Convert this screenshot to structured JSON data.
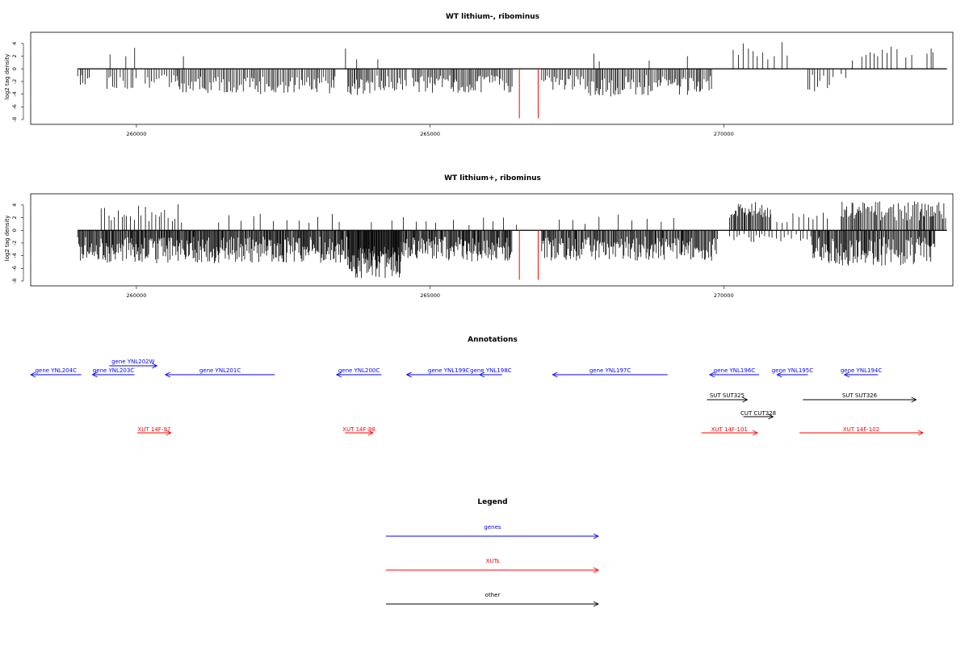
{
  "chart_data": [
    {
      "type": "bar",
      "title": "WT lithium-, ribominus",
      "ylabel": "log2 tag density",
      "xlim": [
        258200,
        273900
      ],
      "ylim": [
        -8,
        5
      ],
      "y_ticks": [
        4,
        2,
        0,
        -2,
        -4,
        -6,
        -8
      ],
      "x_ticks": [
        {
          "value": 260000,
          "label": "260000"
        },
        {
          "value": 265000,
          "label": "265000"
        },
        {
          "value": 270000,
          "label": "270000"
        }
      ],
      "highlight_color": "#ff0000",
      "bar_color": "#000000",
      "highlights": [
        {
          "x": 266520,
          "y": -7.8
        },
        {
          "x": 266840,
          "y": -7.8
        }
      ],
      "up_bars": [
        [
          259550,
          2.3
        ],
        [
          259820,
          2.0
        ],
        [
          259970,
          3.3
        ],
        [
          260800,
          2.0
        ],
        [
          263560,
          3.2
        ],
        [
          263750,
          1.5
        ],
        [
          264110,
          1.5
        ],
        [
          267790,
          2.4
        ],
        [
          267880,
          1.2
        ],
        [
          268730,
          1.3
        ],
        [
          269380,
          2.0
        ],
        [
          270160,
          3.0
        ],
        [
          270250,
          2.2
        ],
        [
          270330,
          4.0
        ],
        [
          270420,
          3.2
        ],
        [
          270500,
          2.8
        ],
        [
          270570,
          2.0
        ],
        [
          270660,
          2.6
        ],
        [
          270750,
          1.5
        ],
        [
          270860,
          2.0
        ],
        [
          270990,
          4.2
        ],
        [
          271080,
          2.1
        ],
        [
          272190,
          1.3
        ],
        [
          272350,
          1.9
        ],
        [
          272420,
          2.2
        ],
        [
          272490,
          2.6
        ],
        [
          272560,
          2.4
        ],
        [
          272620,
          2.0
        ],
        [
          272700,
          3.0
        ],
        [
          272780,
          2.5
        ],
        [
          272850,
          3.5
        ],
        [
          272950,
          3.1
        ],
        [
          273100,
          1.8
        ],
        [
          273200,
          2.2
        ],
        [
          273460,
          2.4
        ],
        [
          273530,
          3.2
        ],
        [
          273560,
          2.6
        ]
      ],
      "down_segments": [
        {
          "from": 259000,
          "to": 259200,
          "min": 1.0,
          "max": 2.6,
          "step": 35
        },
        {
          "from": 259500,
          "to": 260000,
          "min": 0.5,
          "max": 3.2,
          "step": 45
        },
        {
          "from": 260150,
          "to": 260700,
          "min": 0.8,
          "max": 3.0,
          "step": 40
        },
        {
          "from": 260700,
          "to": 263400,
          "min": 1.2,
          "max": 4.0,
          "step": 28
        },
        {
          "from": 263600,
          "to": 264000,
          "min": 1.5,
          "max": 4.6,
          "step": 22
        },
        {
          "from": 264000,
          "to": 264600,
          "min": 1.0,
          "max": 3.6,
          "step": 28
        },
        {
          "from": 264700,
          "to": 266400,
          "min": 1.0,
          "max": 3.8,
          "step": 24
        },
        {
          "from": 266900,
          "to": 267700,
          "min": 1.0,
          "max": 3.4,
          "step": 28
        },
        {
          "from": 267700,
          "to": 268200,
          "min": 1.5,
          "max": 4.4,
          "step": 22
        },
        {
          "from": 268200,
          "to": 269800,
          "min": 1.0,
          "max": 4.2,
          "step": 26
        },
        {
          "from": 271430,
          "to": 271900,
          "min": 0.8,
          "max": 3.8,
          "step": 50
        },
        {
          "from": 272000,
          "to": 272100,
          "min": 0.8,
          "max": 1.5,
          "step": 80
        }
      ]
    },
    {
      "type": "bar",
      "title": "WT lithium+, ribominus",
      "ylabel": "log2 tag density",
      "xlim": [
        258200,
        273900
      ],
      "ylim": [
        -8,
        5
      ],
      "y_ticks": [
        4,
        2,
        0,
        -2,
        -4,
        -6,
        -8
      ],
      "x_ticks": [
        {
          "value": 260000,
          "label": "260000"
        },
        {
          "value": 265000,
          "label": "265000"
        },
        {
          "value": 270000,
          "label": "270000"
        }
      ],
      "highlight_color": "#ff0000",
      "bar_color": "#000000",
      "highlights": [
        {
          "x": 266520,
          "y": -7.8
        },
        {
          "x": 266840,
          "y": -7.8
        }
      ],
      "up_segments": [
        {
          "from": 259400,
          "to": 260800,
          "min": 0.8,
          "max": 4.2,
          "step": 55
        },
        {
          "from": 261400,
          "to": 263500,
          "min": 0.8,
          "max": 2.8,
          "step": 180
        },
        {
          "from": 264000,
          "to": 266500,
          "min": 0.8,
          "max": 2.2,
          "step": 250
        },
        {
          "from": 267200,
          "to": 269500,
          "min": 0.8,
          "max": 2.5,
          "step": 260
        },
        {
          "from": 270100,
          "to": 270800,
          "min": 2.0,
          "max": 4.5,
          "step": 18
        },
        {
          "from": 270800,
          "to": 271800,
          "min": 0.8,
          "max": 3.0,
          "step": 90
        },
        {
          "from": 272000,
          "to": 273800,
          "min": 1.5,
          "max": 4.6,
          "step": 22
        }
      ],
      "down_segments": [
        {
          "from": 259000,
          "to": 263600,
          "min": 1.0,
          "max": 5.2,
          "step": 14
        },
        {
          "from": 263600,
          "to": 264500,
          "min": 2.5,
          "max": 7.6,
          "step": 10
        },
        {
          "from": 264500,
          "to": 266400,
          "min": 1.0,
          "max": 5.0,
          "step": 14
        },
        {
          "from": 266900,
          "to": 269900,
          "min": 1.0,
          "max": 4.8,
          "step": 16
        },
        {
          "from": 270100,
          "to": 271500,
          "min": 0.5,
          "max": 2.0,
          "step": 60
        },
        {
          "from": 271500,
          "to": 273600,
          "min": 1.0,
          "max": 5.6,
          "step": 16
        }
      ]
    }
  ],
  "annotations": {
    "title": "Annotations",
    "genes": [
      {
        "label": "gene YNL204C",
        "from": 259100,
        "to": 258200,
        "lane": 0
      },
      {
        "label": "gene YNL203C",
        "from": 260050,
        "to": 259300,
        "lane": 0
      },
      {
        "label": "gene YNL202W",
        "from": 259600,
        "to": 260450,
        "lane": 1
      },
      {
        "label": "gene YNL201C",
        "from": 262550,
        "to": 260600,
        "lane": 0
      },
      {
        "label": "gene YNL200C",
        "from": 264450,
        "to": 263650,
        "lane": 0
      },
      {
        "label": "gene YNL199C",
        "from": 266400,
        "to": 264900,
        "lane": 0
      },
      {
        "label": "gene YNL198C",
        "from": 266600,
        "to": 266200,
        "lane": 0
      },
      {
        "label": "gene YNL197C",
        "from": 269550,
        "to": 267500,
        "lane": 0
      },
      {
        "label": "gene YNL196C",
        "from": 271180,
        "to": 270300,
        "lane": 0
      },
      {
        "label": "gene YNL195C",
        "from": 272050,
        "to": 271500,
        "lane": 0
      },
      {
        "label": "gene YNL194C",
        "from": 273300,
        "to": 272700,
        "lane": 0
      }
    ],
    "others": [
      {
        "label": "SUT SUT325",
        "from": 270250,
        "to": 270970,
        "lane": 2
      },
      {
        "label": "SUT SUT326",
        "from": 271960,
        "to": 273980,
        "lane": 2
      },
      {
        "label": "CUT CUT328",
        "from": 270900,
        "to": 271430,
        "lane": 3
      }
    ],
    "xuts": [
      {
        "label": "XUT 14F-97",
        "from": 260100,
        "to": 260700,
        "lane": 4
      },
      {
        "label": "XUT 14F-98",
        "from": 263800,
        "to": 264300,
        "lane": 4
      },
      {
        "label": "XUT 14F-101",
        "from": 270150,
        "to": 271150,
        "lane": 4
      },
      {
        "label": "XUT 14F-102",
        "from": 271900,
        "to": 274100,
        "lane": 4
      }
    ]
  },
  "legend": {
    "title": "Legend",
    "entries": [
      {
        "label": "genes",
        "color": "#0000ff"
      },
      {
        "label": "XUTs",
        "color": "#ff0000"
      },
      {
        "label": "other",
        "color": "#000000"
      }
    ]
  },
  "colors": {
    "genes": "#0000ff",
    "xuts": "#ff0000",
    "other": "#000000",
    "highlight": "#ff0000"
  }
}
